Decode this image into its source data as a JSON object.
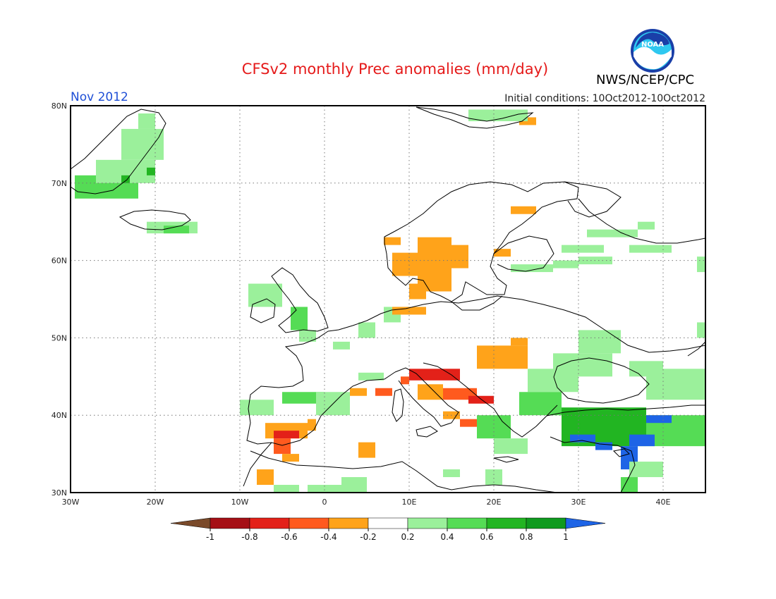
{
  "header": {
    "title": "CFSv2 monthly Prec anomalies (mm/day)",
    "month": "Nov 2012",
    "initial_conditions": "Initial conditions: 10Oct2012-10Oct2012",
    "agency": "NWS/NCEP/CPC",
    "logo_text": "NOAA"
  },
  "map": {
    "extent": {
      "lon_min": -30,
      "lon_max": 45,
      "lat_min": 30,
      "lat_max": 80
    },
    "lat_ticks": [
      {
        "value": 80,
        "label": "80N"
      },
      {
        "value": 70,
        "label": "70N"
      },
      {
        "value": 60,
        "label": "60N"
      },
      {
        "value": 50,
        "label": "50N"
      },
      {
        "value": 40,
        "label": "40N"
      },
      {
        "value": 30,
        "label": "30N"
      }
    ],
    "lon_ticks": [
      {
        "value": -30,
        "label": "30W"
      },
      {
        "value": -20,
        "label": "20W"
      },
      {
        "value": -10,
        "label": "10W"
      },
      {
        "value": 0,
        "label": "0"
      },
      {
        "value": 10,
        "label": "10E"
      },
      {
        "value": 20,
        "label": "20E"
      },
      {
        "value": 30,
        "label": "30E"
      },
      {
        "value": 40,
        "label": "40E"
      }
    ],
    "grid": "dotted",
    "anomaly_cells": [
      {
        "lon": [
          -29.5,
          -22
        ],
        "lat": [
          68,
          71
        ],
        "value": 0.5
      },
      {
        "lon": [
          -27,
          -20
        ],
        "lat": [
          70,
          73
        ],
        "value": 0.3
      },
      {
        "lon": [
          -24,
          -19
        ],
        "lat": [
          73,
          77
        ],
        "value": 0.3
      },
      {
        "lon": [
          -22,
          -20
        ],
        "lat": [
          77,
          79
        ],
        "value": 0.3
      },
      {
        "lon": [
          -24,
          -23
        ],
        "lat": [
          70,
          71
        ],
        "value": 0.7
      },
      {
        "lon": [
          -21,
          -20
        ],
        "lat": [
          71,
          72
        ],
        "value": 0.7
      },
      {
        "lon": [
          -21,
          -15
        ],
        "lat": [
          63.5,
          65
        ],
        "value": 0.3
      },
      {
        "lon": [
          -19,
          -16
        ],
        "lat": [
          63.5,
          64.5
        ],
        "value": 0.5
      },
      {
        "lon": [
          -9,
          -5
        ],
        "lat": [
          54,
          57
        ],
        "value": 0.3
      },
      {
        "lon": [
          -4,
          -2
        ],
        "lat": [
          51,
          54
        ],
        "value": 0.5
      },
      {
        "lon": [
          -3,
          -1
        ],
        "lat": [
          49.5,
          51
        ],
        "value": 0.3
      },
      {
        "lon": [
          1,
          3
        ],
        "lat": [
          48.5,
          49.5
        ],
        "value": 0.3
      },
      {
        "lon": [
          4,
          6
        ],
        "lat": [
          50,
          52
        ],
        "value": 0.3
      },
      {
        "lon": [
          7,
          9
        ],
        "lat": [
          52,
          54
        ],
        "value": 0.3
      },
      {
        "lon": [
          -5,
          0
        ],
        "lat": [
          41.5,
          43
        ],
        "value": 0.5
      },
      {
        "lon": [
          -1,
          3
        ],
        "lat": [
          40,
          43
        ],
        "value": 0.3
      },
      {
        "lon": [
          -10,
          -6
        ],
        "lat": [
          40,
          42
        ],
        "value": 0.3
      },
      {
        "lon": [
          4,
          7
        ],
        "lat": [
          44.5,
          45.5
        ],
        "value": 0.3
      },
      {
        "lon": [
          -7,
          -2
        ],
        "lat": [
          37,
          39
        ],
        "value": -0.3
      },
      {
        "lon": [
          -2,
          -1
        ],
        "lat": [
          38,
          39.5
        ],
        "value": -0.3
      },
      {
        "lon": [
          -6,
          -3
        ],
        "lat": [
          37,
          38
        ],
        "value": -0.7
      },
      {
        "lon": [
          -6,
          -4
        ],
        "lat": [
          35,
          37
        ],
        "value": -0.5
      },
      {
        "lon": [
          -5,
          -3
        ],
        "lat": [
          34,
          35
        ],
        "value": -0.3
      },
      {
        "lon": [
          -8,
          -6
        ],
        "lat": [
          31,
          33
        ],
        "value": -0.3
      },
      {
        "lon": [
          4,
          6
        ],
        "lat": [
          34.5,
          36.5
        ],
        "value": -0.3
      },
      {
        "lon": [
          3,
          5
        ],
        "lat": [
          42.5,
          43.5
        ],
        "value": -0.3
      },
      {
        "lon": [
          6,
          8
        ],
        "lat": [
          42.5,
          43.5
        ],
        "value": -0.5
      },
      {
        "lon": [
          9,
          10
        ],
        "lat": [
          44,
          45
        ],
        "value": -0.5
      },
      {
        "lon": [
          10,
          16
        ],
        "lat": [
          44.5,
          46
        ],
        "value": -0.7
      },
      {
        "lon": [
          11,
          14
        ],
        "lat": [
          42,
          44
        ],
        "value": -0.3
      },
      {
        "lon": [
          14,
          18
        ],
        "lat": [
          42,
          43.5
        ],
        "value": -0.5
      },
      {
        "lon": [
          17,
          20
        ],
        "lat": [
          41.5,
          42.5
        ],
        "value": -0.7
      },
      {
        "lon": [
          16,
          18
        ],
        "lat": [
          38.5,
          39.5
        ],
        "value": -0.5
      },
      {
        "lon": [
          14,
          16
        ],
        "lat": [
          39.5,
          40.5
        ],
        "value": -0.3
      },
      {
        "lon": [
          18,
          24
        ],
        "lat": [
          46,
          49
        ],
        "value": -0.3
      },
      {
        "lon": [
          22,
          24
        ],
        "lat": [
          49,
          50
        ],
        "value": -0.3
      },
      {
        "lon": [
          8,
          12
        ],
        "lat": [
          53,
          54
        ],
        "value": -0.3
      },
      {
        "lon": [
          10,
          12
        ],
        "lat": [
          55,
          57
        ],
        "value": -0.3
      },
      {
        "lon": [
          8,
          11
        ],
        "lat": [
          58,
          61
        ],
        "value": -0.3
      },
      {
        "lon": [
          11,
          15
        ],
        "lat": [
          56,
          63
        ],
        "value": -0.3
      },
      {
        "lon": [
          15,
          17
        ],
        "lat": [
          59,
          62
        ],
        "value": -0.3
      },
      {
        "lon": [
          7,
          9
        ],
        "lat": [
          62,
          63
        ],
        "value": -0.3
      },
      {
        "lon": [
          22,
          25
        ],
        "lat": [
          66,
          67
        ],
        "value": -0.3
      },
      {
        "lon": [
          20,
          22
        ],
        "lat": [
          60.5,
          61.5
        ],
        "value": -0.3
      },
      {
        "lon": [
          23,
          25
        ],
        "lat": [
          77.5,
          78.5
        ],
        "value": -0.3
      },
      {
        "lon": [
          17,
          24
        ],
        "lat": [
          78,
          79.5
        ],
        "value": 0.3
      },
      {
        "lon": [
          28,
          33
        ],
        "lat": [
          61,
          62
        ],
        "value": 0.3
      },
      {
        "lon": [
          27,
          30
        ],
        "lat": [
          59,
          60
        ],
        "value": 0.3
      },
      {
        "lon": [
          22,
          27
        ],
        "lat": [
          58.5,
          59.5
        ],
        "value": 0.3
      },
      {
        "lon": [
          31,
          37
        ],
        "lat": [
          63,
          64
        ],
        "value": 0.3
      },
      {
        "lon": [
          37,
          39
        ],
        "lat": [
          64,
          65
        ],
        "value": 0.3
      },
      {
        "lon": [
          36,
          41
        ],
        "lat": [
          61,
          62
        ],
        "value": 0.3
      },
      {
        "lon": [
          30,
          34
        ],
        "lat": [
          59.5,
          60.5
        ],
        "value": 0.3
      },
      {
        "lon": [
          44,
          45
        ],
        "lat": [
          58.5,
          60.5
        ],
        "value": 0.3
      },
      {
        "lon": [
          30,
          35
        ],
        "lat": [
          48,
          51
        ],
        "value": 0.3
      },
      {
        "lon": [
          27,
          34
        ],
        "lat": [
          45,
          48
        ],
        "value": 0.3
      },
      {
        "lon": [
          24,
          30
        ],
        "lat": [
          43,
          46
        ],
        "value": 0.3
      },
      {
        "lon": [
          23,
          28
        ],
        "lat": [
          40,
          43
        ],
        "value": 0.5
      },
      {
        "lon": [
          36,
          40
        ],
        "lat": [
          45,
          47
        ],
        "value": 0.3
      },
      {
        "lon": [
          38,
          45
        ],
        "lat": [
          42,
          46
        ],
        "value": 0.3
      },
      {
        "lon": [
          44,
          45
        ],
        "lat": [
          50,
          52
        ],
        "value": 0.3
      },
      {
        "lon": [
          28,
          38
        ],
        "lat": [
          36,
          41
        ],
        "value": 0.7
      },
      {
        "lon": [
          38,
          45
        ],
        "lat": [
          36,
          40
        ],
        "value": 0.5
      },
      {
        "lon": [
          29,
          32
        ],
        "lat": [
          36.5,
          37.5
        ],
        "value": 1.1
      },
      {
        "lon": [
          32,
          34
        ],
        "lat": [
          35.5,
          36.5
        ],
        "value": 1.1
      },
      {
        "lon": [
          36,
          39
        ],
        "lat": [
          36,
          37.5
        ],
        "value": 1.1
      },
      {
        "lon": [
          35,
          37
        ],
        "lat": [
          33,
          36
        ],
        "value": 1.1
      },
      {
        "lon": [
          38,
          41
        ],
        "lat": [
          39,
          40
        ],
        "value": 1.1
      },
      {
        "lon": [
          35,
          37
        ],
        "lat": [
          30,
          32
        ],
        "value": 0.5
      },
      {
        "lon": [
          36,
          40
        ],
        "lat": [
          32,
          34
        ],
        "value": 0.3
      },
      {
        "lon": [
          18,
          22
        ],
        "lat": [
          37,
          40
        ],
        "value": 0.5
      },
      {
        "lon": [
          20,
          24
        ],
        "lat": [
          35,
          37
        ],
        "value": 0.3
      },
      {
        "lon": [
          19,
          21
        ],
        "lat": [
          31,
          33
        ],
        "value": 0.3
      },
      {
        "lon": [
          14,
          16
        ],
        "lat": [
          32,
          33
        ],
        "value": 0.3
      },
      {
        "lon": [
          -6,
          -3
        ],
        "lat": [
          30,
          31
        ],
        "value": 0.3
      },
      {
        "lon": [
          -2,
          2
        ],
        "lat": [
          30,
          31
        ],
        "value": 0.3
      },
      {
        "lon": [
          2,
          5
        ],
        "lat": [
          30,
          32
        ],
        "value": 0.3
      }
    ]
  },
  "colorbar": {
    "labels": [
      "-1",
      "-0.8",
      "-0.6",
      "-0.4",
      "-0.2",
      "0.2",
      "0.4",
      "0.6",
      "0.8",
      "1"
    ],
    "colors": {
      "below_-1": "#7a4a2a",
      "-1_-0.8": "#a50f15",
      "-0.8_-0.6": "#e32119",
      "-0.6_-0.4": "#ff5a1e",
      "-0.4_-0.2": "#ffa31a",
      "-0.2_0.2": "#ffffff",
      "0.2_0.4": "#9bf09b",
      "0.4_0.6": "#55dc55",
      "0.6_0.8": "#22b522",
      "0.8_1": "#0f9a1f",
      "above_1": "#1e64e6"
    }
  }
}
